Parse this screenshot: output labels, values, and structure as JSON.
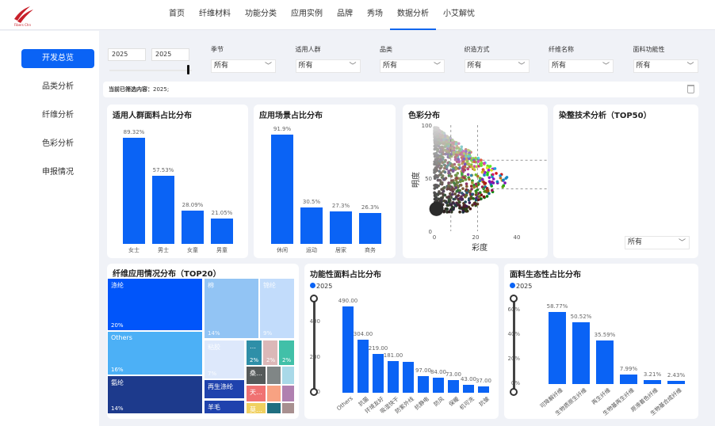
{
  "header": {
    "logo_text": "Fibers Chn",
    "nav": [
      "首页",
      "纤维材料",
      "功能分类",
      "应用实例",
      "品牌",
      "秀场",
      "数据分析",
      "小艾解忧"
    ],
    "active_nav": "数据分析"
  },
  "sidebar": {
    "items": [
      "开发总览",
      "品类分析",
      "纤维分析",
      "色彩分析",
      "申报情况"
    ],
    "active": "开发总览"
  },
  "filters": {
    "year_from": "2025",
    "year_to": "2025",
    "selects": [
      {
        "label": "季节",
        "value": "所有"
      },
      {
        "label": "适用人群",
        "value": "所有"
      },
      {
        "label": "品类",
        "value": "所有"
      },
      {
        "label": "织造方式",
        "value": "所有"
      },
      {
        "label": "纤维名称",
        "value": "所有"
      },
      {
        "label": "面料功能性",
        "value": "所有"
      }
    ]
  },
  "current_filter": {
    "label": "当前已筛选内容：",
    "value": "2025;"
  },
  "accent": "#0a63f5",
  "chart_data": [
    {
      "id": "people",
      "type": "bar",
      "title": "适用人群面料占比分布",
      "categories": [
        "女士",
        "男士",
        "女童",
        "男童"
      ],
      "values": [
        89.32,
        57.53,
        28.09,
        21.05
      ],
      "labels": [
        "89.32%",
        "57.53%",
        "28.09%",
        "21.05%"
      ]
    },
    {
      "id": "scene",
      "type": "bar",
      "title": "应用场景占比分布",
      "categories": [
        "休闲",
        "运动",
        "居家",
        "商务"
      ],
      "values": [
        91.9,
        30.5,
        27.3,
        26.3
      ],
      "labels": [
        "91.9%",
        "30.5%",
        "27.3%",
        "26.3%"
      ]
    },
    {
      "id": "color",
      "type": "scatter",
      "title": "色彩分布",
      "xlabel": "彩度",
      "ylabel": "明度",
      "xticks": [
        "0",
        "20",
        "40"
      ],
      "yticks": [
        "0",
        "50",
        "100"
      ],
      "xlim": [
        0,
        50
      ],
      "ylim": [
        0,
        100
      ],
      "reference_lines": {
        "x": [
          8,
          21
        ],
        "y": [
          67,
          40
        ]
      }
    },
    {
      "id": "dye",
      "type": "table",
      "title": "染整技术分析（TOP50）",
      "select_value": "所有"
    },
    {
      "id": "fiber",
      "type": "treemap",
      "title": "纤维应用情况分布（TOP20）",
      "tiles": [
        {
          "name": "涤纶",
          "pct": "20%",
          "color": "#0055fa"
        },
        {
          "name": "Others",
          "pct": "16%",
          "color": "#4cb0f6"
        },
        {
          "name": "氨纶",
          "pct": "14%",
          "color": "#1d3a8c"
        },
        {
          "name": "棉",
          "pct": "14%",
          "color": "#92c4f4"
        },
        {
          "name": "锦纶",
          "pct": "9%",
          "color": "#c2dcfb"
        },
        {
          "name": "粘胶",
          "pct": "7%",
          "color": "#dde8fb"
        },
        {
          "name": "再生涤纶",
          "pct": "",
          "color": "#1f42ad"
        },
        {
          "name": "羊毛",
          "pct": "",
          "color": "#1f42ad"
        },
        {
          "name": "…",
          "pct": "2%",
          "color": "#2f8fa8"
        },
        {
          "name": "",
          "pct": "2%",
          "color": "#dbb8b8"
        },
        {
          "name": "",
          "pct": "2%",
          "color": "#41c0a8"
        },
        {
          "name": "桑…",
          "pct": "",
          "color": "#555a5a"
        },
        {
          "name": "",
          "pct": "",
          "color": "#808686"
        },
        {
          "name": "",
          "pct": "",
          "color": "#a9d9e8"
        },
        {
          "name": "天…",
          "pct": "",
          "color": "#f07272"
        },
        {
          "name": "",
          "pct": "",
          "color": "#f8a282"
        },
        {
          "name": "",
          "pct": "",
          "color": "#b080b0"
        },
        {
          "name": "莫…",
          "pct": "",
          "color": "#f0d060"
        },
        {
          "name": "",
          "pct": "",
          "color": "#1f6e80"
        },
        {
          "name": "",
          "pct": "",
          "color": "#a89090"
        }
      ]
    },
    {
      "id": "func",
      "type": "bar",
      "title": "功能性面料占比分布",
      "legend": "2025",
      "ylim": [
        0,
        540
      ],
      "yticks": [
        "0",
        "200",
        "400"
      ],
      "categories": [
        "Others",
        "抗菌",
        "环境友好",
        "吸湿快干",
        "防紫外线",
        "抗静电",
        "防风",
        "保暖",
        "机可洗",
        "抗皱"
      ],
      "values": [
        490,
        304,
        219,
        181,
        178,
        97,
        84,
        73,
        43,
        37
      ],
      "labels": [
        "490.00",
        "304.00",
        "219.00",
        "181.00",
        "",
        "97.00",
        "84.00",
        "73.00",
        "43.00",
        "37.00"
      ]
    },
    {
      "id": "eco",
      "type": "bar",
      "title": "面料生态性占比分布",
      "legend": "2025",
      "ylim": [
        0,
        70
      ],
      "yticks": [
        "0%",
        "20%",
        "40%",
        "60%"
      ],
      "categories": [
        "可降解纤维",
        "生物质原生纤维",
        "再生纤维",
        "生物基再生纤维",
        "原液着色纤维",
        "生物基合成纤维"
      ],
      "values": [
        58.77,
        50.52,
        35.59,
        7.99,
        3.21,
        2.43
      ],
      "labels": [
        "58.77%",
        "50.52%",
        "35.59%",
        "7.99%",
        "3.21%",
        "2.43%"
      ]
    }
  ]
}
